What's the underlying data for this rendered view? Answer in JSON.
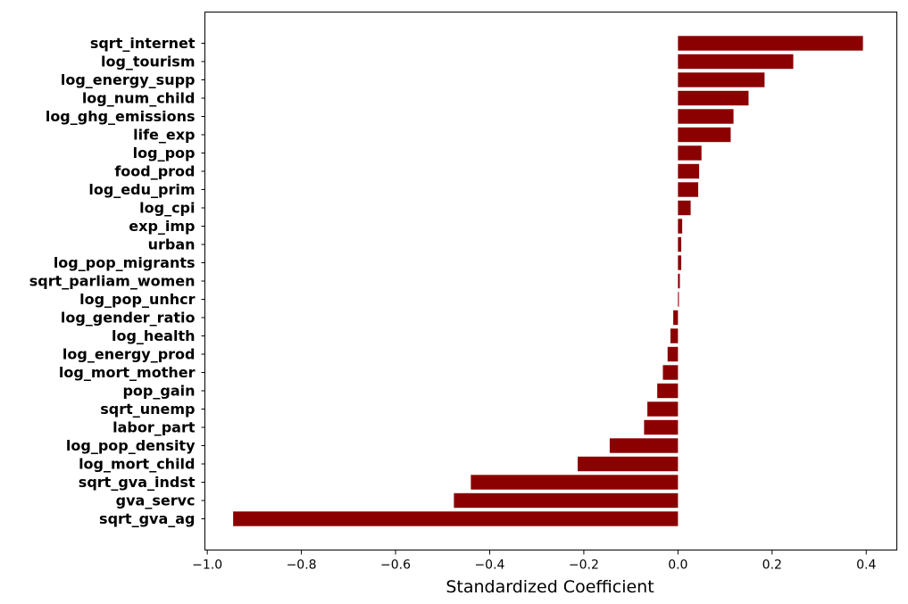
{
  "chart_data": {
    "type": "bar",
    "orientation": "horizontal",
    "title": "",
    "xlabel": "Standardized Coefficient",
    "ylabel": "",
    "xlim": [
      -1.005,
      0.465
    ],
    "xticks": [
      -1.0,
      -0.8,
      -0.6,
      -0.4,
      -0.2,
      0.0,
      0.2,
      0.4
    ],
    "xtick_labels": [
      "−1.0",
      "−0.8",
      "−0.6",
      "−0.4",
      "−0.2",
      "0.0",
      "0.2",
      "0.4"
    ],
    "grid": false,
    "bar_color": "#8b0000",
    "categories": [
      "sqrt_internet",
      "log_tourism",
      "log_energy_supp",
      "log_num_child",
      "log_ghg_emissions",
      "life_exp",
      "log_pop",
      "food_prod",
      "log_edu_prim",
      "log_cpi",
      "exp_imp",
      "urban",
      "log_pop_migrants",
      "sqrt_parliam_women",
      "log_pop_unhcr",
      "log_gender_ratio",
      "log_health",
      "log_energy_prod",
      "log_mort_mother",
      "pop_gain",
      "sqrt_unemp",
      "labor_part",
      "log_pop_density",
      "log_mort_child",
      "sqrt_gva_indst",
      "gva_servc",
      "sqrt_gva_ag"
    ],
    "values": [
      0.393,
      0.245,
      0.184,
      0.15,
      0.118,
      0.112,
      0.05,
      0.045,
      0.043,
      0.027,
      0.009,
      0.007,
      0.007,
      0.004,
      0.002,
      -0.01,
      -0.016,
      -0.022,
      -0.032,
      -0.044,
      -0.065,
      -0.072,
      -0.145,
      -0.213,
      -0.44,
      -0.476,
      -0.945
    ]
  }
}
